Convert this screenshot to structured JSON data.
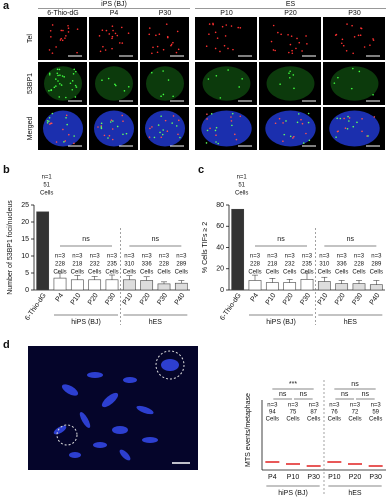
{
  "panel_a": {
    "letter": "a",
    "groups": [
      "iPS (BJ)",
      "ES"
    ],
    "columns": [
      "6-Thio-dG",
      "P4",
      "P30",
      "P10",
      "P20",
      "P30"
    ],
    "rows": [
      "Tel",
      "53BP1",
      "Merged"
    ]
  },
  "chart_data": [
    {
      "type": "bar",
      "panel": "b",
      "ylabel": "Number of 53BP1 foci/nucleus",
      "categories": [
        "6-Thio-dG",
        "P4",
        "P10",
        "P20",
        "P30",
        "P10",
        "P20",
        "P30",
        "P40"
      ],
      "values": [
        23,
        3.5,
        3,
        3,
        3,
        3,
        2.8,
        1.8,
        2
      ],
      "errors": [
        null,
        1.5,
        1.3,
        1,
        1.4,
        1.2,
        1.1,
        0.6,
        0.8
      ],
      "colors": [
        "#333333",
        "#ffffff",
        "#ffffff",
        "#ffffff",
        "#ffffff",
        "#dddddd",
        "#dddddd",
        "#dddddd",
        "#dddddd"
      ],
      "annotations": [
        [
          "n=1",
          "51",
          "Cells"
        ],
        [
          "n=3",
          "228",
          "Cells"
        ],
        [
          "n=3",
          "218",
          "Cells"
        ],
        [
          "n=3",
          "232",
          "Cells"
        ],
        [
          "n=3",
          "235",
          "Cells"
        ],
        [
          "n=3",
          "310",
          "Cells"
        ],
        [
          "n=3",
          "336",
          "Cells"
        ],
        [
          "n=3",
          "228",
          "Cells"
        ],
        [
          "n=3",
          "289",
          "Cells"
        ]
      ],
      "significance": [
        "ns",
        "ns"
      ],
      "groups": [
        "hiPS (BJ)",
        "hES"
      ],
      "ylim": [
        0,
        25
      ],
      "yticks": [
        0,
        5,
        10,
        15,
        20,
        25
      ]
    },
    {
      "type": "bar",
      "panel": "c",
      "ylabel": "% Cells TIFs ≥ 2",
      "categories": [
        "6-Thio-dG",
        "P4",
        "P10",
        "P20",
        "P30",
        "P10",
        "P20",
        "P30",
        "P40"
      ],
      "values": [
        76,
        9,
        7,
        7,
        10,
        8,
        6,
        6,
        5
      ],
      "errors": [
        null,
        5,
        4,
        3,
        6,
        4,
        3,
        3,
        4
      ],
      "colors": [
        "#333333",
        "#ffffff",
        "#ffffff",
        "#ffffff",
        "#ffffff",
        "#dddddd",
        "#dddddd",
        "#dddddd",
        "#dddddd"
      ],
      "annotations": [
        [
          "n=1",
          "51",
          "Cells"
        ],
        [
          "n=3",
          "228",
          "Cells"
        ],
        [
          "n=3",
          "218",
          "Cells"
        ],
        [
          "n=3",
          "232",
          "Cells"
        ],
        [
          "n=3",
          "235",
          "Cells"
        ],
        [
          "n=3",
          "310",
          "Cells"
        ],
        [
          "n=3",
          "336",
          "Cells"
        ],
        [
          "n=3",
          "228",
          "Cells"
        ],
        [
          "n=3",
          "289",
          "Cells"
        ]
      ],
      "significance": [
        "ns",
        "ns"
      ],
      "groups": [
        "hiPS (BJ)",
        "hES"
      ],
      "ylim": [
        0,
        80
      ],
      "yticks": [
        0,
        20,
        40,
        60,
        80
      ]
    },
    {
      "type": "dot",
      "panel": "d",
      "ylabel": "MTS events/metaphase",
      "categories": [
        "P4",
        "P10",
        "P30",
        "P10",
        "P20",
        "P30"
      ],
      "values": [
        2,
        1.5,
        1,
        2,
        1.5,
        1
      ],
      "color": "#e02020",
      "annotations": [
        [
          "n=3",
          "94",
          "Cells"
        ],
        [
          "n=3",
          "75",
          "Cells"
        ],
        [
          "n=3",
          "87",
          "Cells"
        ],
        [
          "n=3",
          "76",
          "Cells"
        ],
        [
          "n=3",
          "72",
          "Cells"
        ],
        [
          "n=3",
          "59",
          "Cells"
        ]
      ],
      "significance": [
        "***",
        "ns",
        "ns",
        "ns",
        "ns",
        "ns"
      ],
      "groups": [
        "hiPS (BJ)",
        "hES"
      ],
      "ylim": [
        0,
        10
      ]
    }
  ]
}
